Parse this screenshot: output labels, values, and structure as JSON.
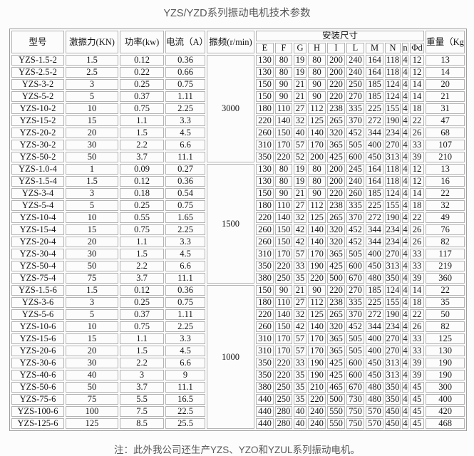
{
  "page": {
    "title": "YZS/YZD系列振动电机技术参数",
    "note": "注：此外我公司还生产YZS、YZO和YZUL系列振动电机。"
  },
  "table": {
    "headers": {
      "model": "型号",
      "force": "激振力(KN)",
      "power": "功率(kw)",
      "current": "电流（A）",
      "frequency": "振频(r/min)",
      "dimensions": "安装尺寸",
      "dim_cols": [
        "E",
        "F",
        "G",
        "H",
        "I",
        "L",
        "M",
        "N",
        "n",
        "Φd"
      ],
      "weight": "重量（Kg）"
    },
    "groups": [
      {
        "frequency": "3000",
        "rows": [
          {
            "model": "YZS-1.5-2",
            "force": "1.5",
            "power": "0.12",
            "current": "0.36",
            "dims": [
              "130",
              "80",
              "19",
              "80",
              "200",
              "240",
              "164",
              "118",
              "4",
              "12"
            ],
            "weight": "13"
          },
          {
            "model": "YZS-2.5-2",
            "force": "2.5",
            "power": "0.22",
            "current": "0.66",
            "dims": [
              "130",
              "80",
              "19",
              "80",
              "200",
              "240",
              "164",
              "118",
              "4",
              "12"
            ],
            "weight": "14"
          },
          {
            "model": "YZS-3-2",
            "force": "3",
            "power": "0.25",
            "current": "0.75",
            "dims": [
              "150",
              "90",
              "21",
              "90",
              "220",
              "250",
              "185",
              "124",
              "4",
              "14"
            ],
            "weight": "20"
          },
          {
            "model": "YZS-5-2",
            "force": "5",
            "power": "0.37",
            "current": "1.11",
            "dims": [
              "150",
              "90",
              "21",
              "90",
              "220",
              "270",
              "185",
              "124",
              "4",
              "14"
            ],
            "weight": "21"
          },
          {
            "model": "YZS-10-2",
            "force": "10",
            "power": "0.75",
            "current": "2.25",
            "dims": [
              "180",
              "110",
              "27",
              "112",
              "238",
              "335",
              "225",
              "155",
              "4",
              "18"
            ],
            "weight": "31"
          },
          {
            "model": "YZS-15-2",
            "force": "15",
            "power": "1.1",
            "current": "3.3",
            "dims": [
              "220",
              "140",
              "32",
              "125",
              "265",
              "370",
              "272",
              "190",
              "4",
              "22"
            ],
            "weight": "47"
          },
          {
            "model": "YZS-20-2",
            "force": "20",
            "power": "1.5",
            "current": "4.5",
            "dims": [
              "260",
              "150",
              "40",
              "140",
              "320",
              "452",
              "344",
              "234",
              "4",
              "26"
            ],
            "weight": "68"
          },
          {
            "model": "YZS-30-2",
            "force": "30",
            "power": "2.2",
            "current": "6.6",
            "dims": [
              "310",
              "170",
              "57",
              "170",
              "365",
              "505",
              "400",
              "270",
              "4",
              "33"
            ],
            "weight": "107"
          },
          {
            "model": "YZS-50-2",
            "force": "50",
            "power": "3.7",
            "current": "11.1",
            "dims": [
              "350",
              "220",
              "52",
              "200",
              "425",
              "600",
              "450",
              "313",
              "4",
              "39"
            ],
            "weight": "210"
          }
        ]
      },
      {
        "frequency": "1500",
        "rows": [
          {
            "model": "YZS-1.0-4",
            "force": "1",
            "power": "0.09",
            "current": "0.27",
            "dims": [
              "130",
              "80",
              "19",
              "80",
              "200",
              "245",
              "164",
              "118",
              "4",
              "12"
            ],
            "weight": "13"
          },
          {
            "model": "YZS-1.5-4",
            "force": "1.5",
            "power": "0.12",
            "current": "0.36",
            "dims": [
              "130",
              "80",
              "19",
              "80",
              "200",
              "240",
              "164",
              "118",
              "4",
              "12"
            ],
            "weight": "16"
          },
          {
            "model": "YZS-3-4",
            "force": "3",
            "power": "0.18",
            "current": "0.54",
            "dims": [
              "150",
              "90",
              "21",
              "90",
              "220",
              "260",
              "185",
              "124",
              "4",
              "14"
            ],
            "weight": "22"
          },
          {
            "model": "YZS-5-4",
            "force": "5",
            "power": "0.25",
            "current": "0.75",
            "dims": [
              "180",
              "110",
              "27",
              "112",
              "238",
              "335",
              "225",
              "155",
              "4",
              "18"
            ],
            "weight": "32"
          },
          {
            "model": "YZS-10-4",
            "force": "10",
            "power": "0.55",
            "current": "1.65",
            "dims": [
              "220",
              "140",
              "32",
              "125",
              "265",
              "370",
              "272",
              "190",
              "4",
              "22"
            ],
            "weight": "49"
          },
          {
            "model": "YZS-15-4",
            "force": "15",
            "power": "0.75",
            "current": "2.25",
            "dims": [
              "260",
              "150",
              "42",
              "140",
              "320",
              "452",
              "344",
              "234",
              "4",
              "26"
            ],
            "weight": "76"
          },
          {
            "model": "YZS-20-4",
            "force": "20",
            "power": "1.1",
            "current": "3.3",
            "dims": [
              "260",
              "150",
              "42",
              "140",
              "320",
              "452",
              "344",
              "234",
              "4",
              "26"
            ],
            "weight": "82"
          },
          {
            "model": "YZS-30-4",
            "force": "30",
            "power": "1.5",
            "current": "4.5",
            "dims": [
              "310",
              "170",
              "57",
              "170",
              "365",
              "505",
              "400",
              "270",
              "4",
              "33"
            ],
            "weight": "117"
          },
          {
            "model": "YZS-50-4",
            "force": "50",
            "power": "2.2",
            "current": "6.6",
            "dims": [
              "350",
              "220",
              "33",
              "190",
              "425",
              "600",
              "450",
              "313",
              "4",
              "33"
            ],
            "weight": "219"
          },
          {
            "model": "YZS-75-4",
            "force": "75",
            "power": "3.7",
            "current": "11.1",
            "dims": [
              "380",
              "250",
              "35",
              "220",
              "500",
              "670",
              "480",
              "350",
              "4",
              "39"
            ],
            "weight": "360"
          }
        ]
      },
      {
        "frequency": "1000",
        "rows": [
          {
            "model": "YZS-1.5-6",
            "force": "1.5",
            "power": "0.12",
            "current": "0.36",
            "dims": [
              "150",
              "90",
              "21",
              "90",
              "220",
              "270",
              "185",
              "124",
              "4",
              "14"
            ],
            "weight": "22"
          },
          {
            "model": "YZS-3-6",
            "force": "3",
            "power": "0.25",
            "current": "0.75",
            "dims": [
              "180",
              "110",
              "27",
              "112",
              "238",
              "335",
              "225",
              "155",
              "4",
              "18"
            ],
            "weight": "35"
          },
          {
            "model": "YZS-5-6",
            "force": "5",
            "power": "0.37",
            "current": "1.11",
            "dims": [
              "220",
              "140",
              "32",
              "125",
              "265",
              "370",
              "272",
              "190",
              "4",
              "22"
            ],
            "weight": "50"
          },
          {
            "model": "YZS-10-6",
            "force": "10",
            "power": "0.75",
            "current": "2.25",
            "dims": [
              "260",
              "150",
              "42",
              "140",
              "320",
              "452",
              "344",
              "234",
              "4",
              "26"
            ],
            "weight": "82"
          },
          {
            "model": "YZS-15-6",
            "force": "15",
            "power": "1.1",
            "current": "3.3",
            "dims": [
              "310",
              "170",
              "57",
              "170",
              "365",
              "505",
              "400",
              "270",
              "4",
              "33"
            ],
            "weight": "125"
          },
          {
            "model": "YZS-20-6",
            "force": "20",
            "power": "1.5",
            "current": "4.5",
            "dims": [
              "310",
              "170",
              "57",
              "170",
              "365",
              "505",
              "400",
              "270",
              "4",
              "33"
            ],
            "weight": "130"
          },
          {
            "model": "YZS-30-6",
            "force": "30",
            "power": "2.2",
            "current": "6.6",
            "dims": [
              "350",
              "220",
              "33",
              "190",
              "425",
              "600",
              "450",
              "313",
              "4",
              "39"
            ],
            "weight": "190"
          },
          {
            "model": "YZS-40-6",
            "force": "40",
            "power": "3",
            "current": "9",
            "dims": [
              "350",
              "220",
              "35",
              "190",
              "425",
              "600",
              "450",
              "313",
              "4",
              "39"
            ],
            "weight": "190"
          },
          {
            "model": "YZS-50-6",
            "force": "50",
            "power": "3.7",
            "current": "11.1",
            "dims": [
              "380",
              "250",
              "35",
              "210",
              "465",
              "670",
              "480",
              "350",
              "4",
              "45"
            ],
            "weight": "300"
          },
          {
            "model": "YZS-75-6",
            "force": "75",
            "power": "5.5",
            "current": "16.5",
            "dims": [
              "440",
              "250",
              "35",
              "220",
              "500",
              "730",
              "480",
              "350",
              "4",
              "45"
            ],
            "weight": "400"
          },
          {
            "model": "YZS-100-6",
            "force": "100",
            "power": "7.5",
            "current": "22.5",
            "dims": [
              "440",
              "280",
              "40",
              "240",
              "550",
              "750",
              "570",
              "450",
              "4",
              "45"
            ],
            "weight": "420"
          },
          {
            "model": "YZS-125-6",
            "force": "125",
            "power": "8.5",
            "current": "25.5",
            "dims": [
              "440",
              "280",
              "40",
              "240",
              "550",
              "750",
              "570",
              "450",
              "4",
              "45"
            ],
            "weight": "468"
          }
        ]
      }
    ]
  }
}
